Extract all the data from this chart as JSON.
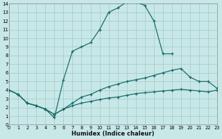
{
  "xlabel": "Humidex (Indice chaleur)",
  "bg_color": "#c8e8e8",
  "grid_color": "#a8cccc",
  "line_color": "#1a6b6b",
  "xlim": [
    0,
    23
  ],
  "ylim": [
    0,
    14
  ],
  "xticks": [
    0,
    1,
    2,
    3,
    4,
    5,
    6,
    7,
    8,
    9,
    10,
    11,
    12,
    13,
    14,
    15,
    16,
    17,
    18,
    19,
    20,
    21,
    22,
    23
  ],
  "yticks": [
    0,
    1,
    2,
    3,
    4,
    5,
    6,
    7,
    8,
    9,
    10,
    11,
    12,
    13,
    14
  ],
  "series1_x": [
    0,
    1,
    2,
    3,
    4,
    5,
    6,
    7,
    8,
    9,
    10,
    11,
    12,
    13,
    14,
    15,
    16,
    17,
    18,
    19,
    20,
    21,
    22,
    23
  ],
  "series1_y": [
    4.0,
    3.5,
    2.5,
    2.2,
    1.8,
    1.2,
    1.8,
    2.2,
    2.5,
    2.7,
    2.9,
    3.1,
    3.2,
    3.4,
    3.6,
    3.7,
    3.8,
    3.9,
    4.0,
    4.1,
    4.0,
    3.9,
    3.8,
    4.0
  ],
  "series2_x": [
    0,
    1,
    2,
    3,
    4,
    5,
    6,
    7,
    8,
    9,
    10,
    11,
    12,
    13,
    14,
    15,
    16,
    17,
    18,
    19,
    20,
    21,
    22,
    23
  ],
  "series2_y": [
    4.0,
    3.5,
    2.5,
    2.2,
    1.8,
    1.2,
    1.8,
    2.5,
    3.2,
    3.5,
    4.0,
    4.4,
    4.7,
    5.0,
    5.2,
    5.4,
    5.7,
    6.0,
    6.3,
    6.5,
    5.5,
    5.0,
    5.0,
    4.2
  ],
  "series3_x": [
    0,
    1,
    2,
    3,
    4,
    5,
    6,
    7,
    8,
    9,
    10,
    11,
    12,
    13,
    14,
    15,
    16,
    17,
    18
  ],
  "series3_y": [
    4.0,
    3.5,
    2.5,
    2.2,
    1.8,
    0.8,
    5.2,
    8.5,
    9.0,
    9.5,
    11.0,
    13.0,
    13.5,
    14.2,
    14.2,
    13.8,
    12.0,
    8.2,
    8.2
  ]
}
